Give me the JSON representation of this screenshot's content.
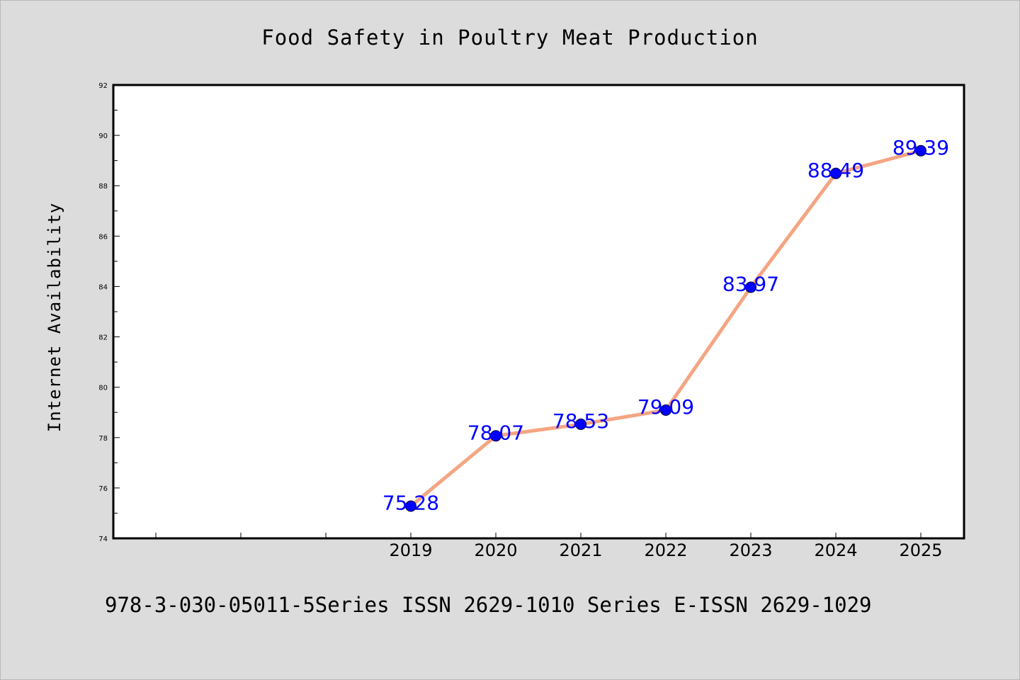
{
  "chart_data": {
    "type": "line",
    "title": "Food Safety in Poultry Meat Production",
    "xlabel": "",
    "ylabel": "Internet Availability",
    "categories": [
      "2019",
      "2020",
      "2021",
      "2022",
      "2023",
      "2024",
      "2025"
    ],
    "series": [
      {
        "values": [
          75.28,
          78.07,
          78.53,
          79.09,
          83.97,
          88.49,
          89.39
        ],
        "line_color": "#f4a582",
        "marker_color": "#0000ff"
      }
    ],
    "data_labels": [
      "75.28",
      "78.07",
      "78.53",
      "79.09",
      "83.97",
      "88.49",
      "89.39"
    ],
    "data_label_color": "#0000ff",
    "ylim": [
      74,
      92
    ],
    "y_ticks": [
      "74",
      "76",
      "78",
      "80",
      "82",
      "84",
      "86",
      "88",
      "90",
      "92"
    ],
    "grid": false,
    "legend": "none"
  },
  "footer": {
    "text": "978-3-030-05011-5Series ISSN 2629-1010 Series E-ISSN 2629-1029"
  },
  "colors": {
    "background": "#dcdcdc",
    "plot_area": "#ffffff",
    "axis": "#000000"
  }
}
